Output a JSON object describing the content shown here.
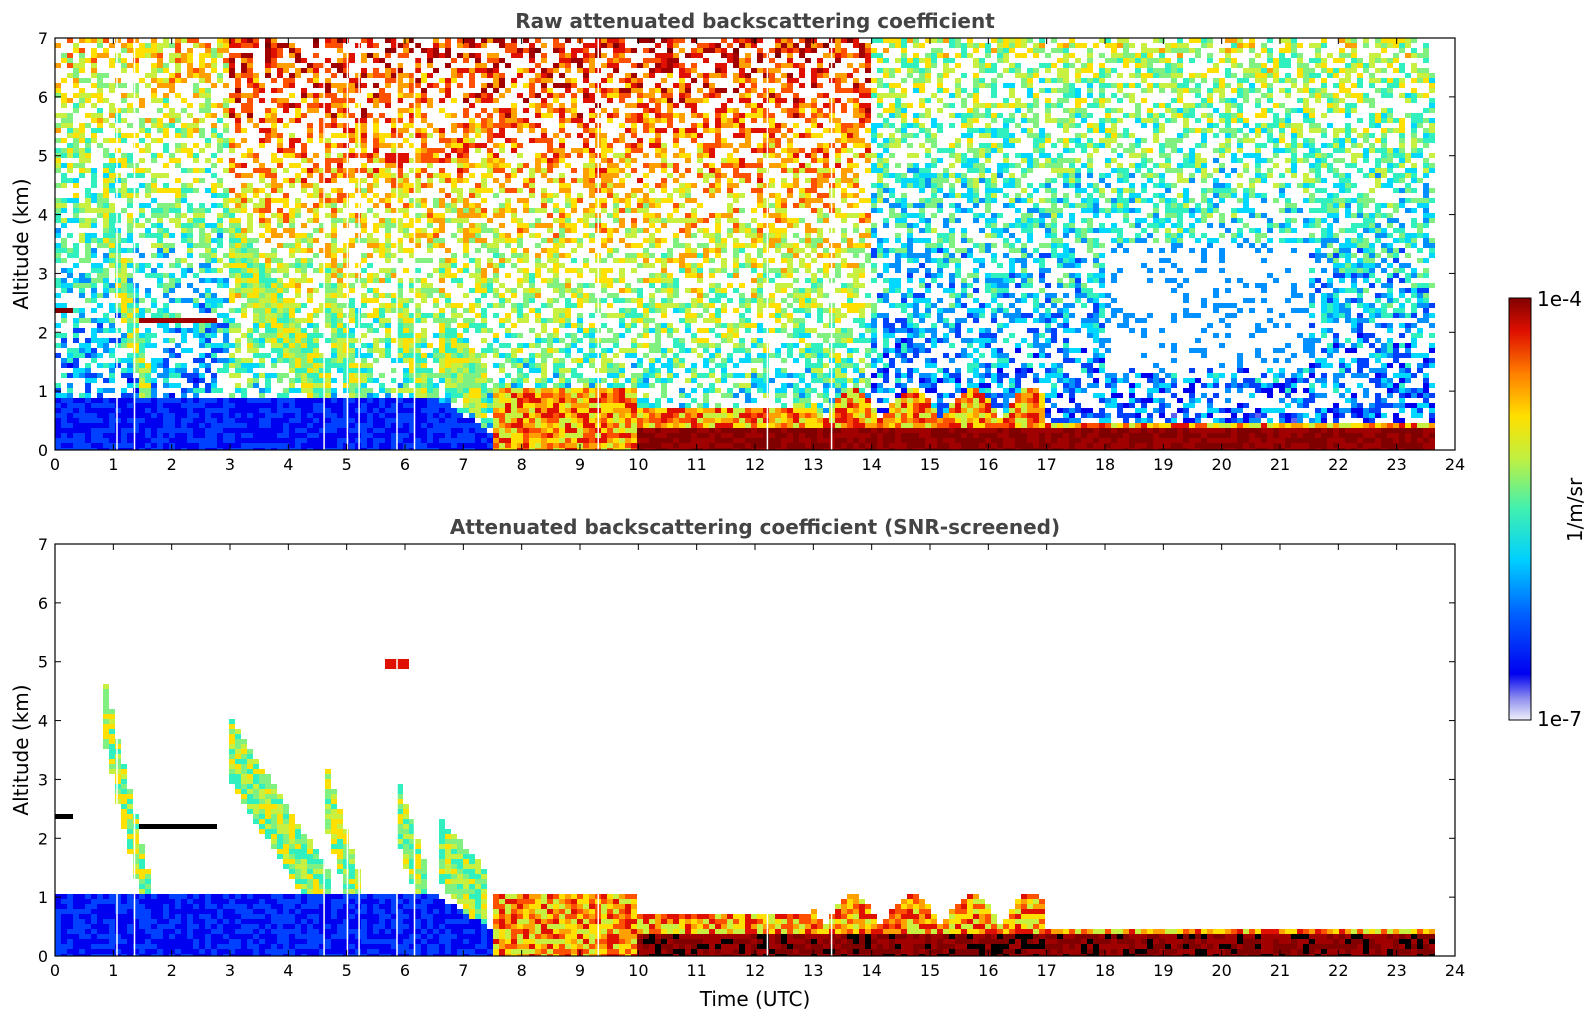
{
  "chart_data": [
    {
      "type": "heatmap",
      "title": "Raw attenuated backscattering coefficient",
      "xlabel": "",
      "ylabel": "Altitude (km)",
      "xlim": [
        0,
        24
      ],
      "ylim": [
        0,
        7
      ],
      "xticks": [
        "0",
        "1",
        "2",
        "3",
        "4",
        "5",
        "6",
        "7",
        "8",
        "9",
        "10",
        "11",
        "12",
        "13",
        "14",
        "15",
        "16",
        "17",
        "18",
        "19",
        "20",
        "21",
        "22",
        "23",
        "24"
      ],
      "yticks": [
        "0",
        "1",
        "2",
        "3",
        "4",
        "5",
        "6",
        "7"
      ],
      "data_time_range": [
        0,
        23.65
      ],
      "features": [
        {
          "t": [
            0,
            1.2
          ],
          "alt": [
            0,
            0.6
          ],
          "level": "low"
        },
        {
          "t": [
            0,
            0.3
          ],
          "alt": [
            2.3,
            2.45
          ],
          "level": "very high"
        },
        {
          "t": [
            1.4,
            2.9
          ],
          "alt": [
            2.1,
            2.3
          ],
          "level": "very high"
        },
        {
          "t": [
            5.7,
            6.1
          ],
          "alt": [
            4.9,
            5.05
          ],
          "level": "high"
        },
        {
          "t": [
            7.5,
            23.65
          ],
          "alt": [
            0,
            1.2
          ],
          "level": "high"
        },
        {
          "t": [
            18,
            21
          ],
          "alt": [
            1.4,
            3.5
          ],
          "level": "none (blank)"
        }
      ]
    },
    {
      "type": "heatmap",
      "title": "Attenuated backscattering coefficient (SNR-screened)",
      "xlabel": "Time (UTC)",
      "ylabel": "Altitude (km)",
      "xlim": [
        0,
        24
      ],
      "ylim": [
        0,
        7
      ],
      "xticks": [
        "0",
        "1",
        "2",
        "3",
        "4",
        "5",
        "6",
        "7",
        "8",
        "9",
        "10",
        "11",
        "12",
        "13",
        "14",
        "15",
        "16",
        "17",
        "18",
        "19",
        "20",
        "21",
        "22",
        "23",
        "24"
      ],
      "yticks": [
        "0",
        "1",
        "2",
        "3",
        "4",
        "5",
        "6",
        "7"
      ],
      "data_time_range": [
        0,
        23.65
      ],
      "features": [
        {
          "t": [
            0,
            7.8
          ],
          "alt": [
            0,
            1.05
          ],
          "level": "low"
        },
        {
          "t": [
            0,
            0.3
          ],
          "alt": [
            2.3,
            2.45
          ],
          "level": "saturated (black)"
        },
        {
          "t": [
            1.4,
            2.9
          ],
          "alt": [
            2.1,
            2.3
          ],
          "level": "saturated (black)"
        },
        {
          "t": [
            5.7,
            6.1
          ],
          "alt": [
            4.9,
            5.05
          ],
          "level": "high"
        },
        {
          "t": [
            7.5,
            23.65
          ],
          "alt": [
            0,
            1.0
          ],
          "level": "high"
        }
      ]
    }
  ],
  "colorbar": {
    "label": "1/m/sr",
    "max_label": "1e-4",
    "min_label": "1e-7",
    "scale": "log",
    "colormap": "jet",
    "colors": [
      "#e8e8f8",
      "#a8a8f0",
      "#6060f0",
      "#0000f0",
      "#0040ff",
      "#0090ff",
      "#00d8ff",
      "#30f0c0",
      "#80f080",
      "#c8f040",
      "#ffe000",
      "#ffa000",
      "#ff5000",
      "#e01000",
      "#a00000",
      "#800000"
    ]
  }
}
